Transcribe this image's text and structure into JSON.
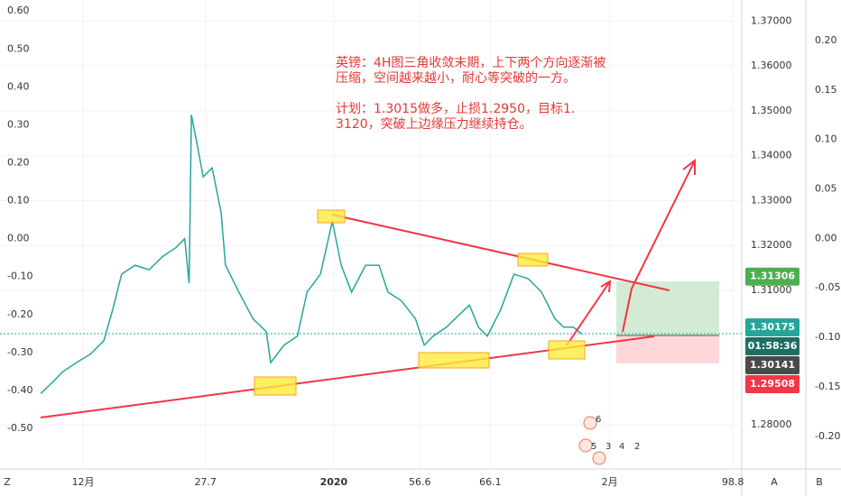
{
  "chart_data": {
    "type": "line",
    "x": [
      5.5,
      7.3,
      8.5,
      10.3,
      12.2,
      14.0,
      15.2,
      16.4,
      18.2,
      20.1,
      21.9,
      23.7,
      24.9,
      25.5,
      25.8,
      26.5,
      27.4,
      28.6,
      29.8,
      30.4,
      32.2,
      34.1,
      35.9,
      36.5,
      38.3,
      40.1,
      41.4,
      43.2,
      44.8,
      46.0,
      47.4,
      49.3,
      51.1,
      52.3,
      54.1,
      56.0,
      57.2,
      58.4,
      60.2,
      62.0,
      63.3,
      64.5,
      65.7,
      67.5,
      69.3,
      71.2,
      73.0,
      74.8,
      76.0,
      77.3,
      78.5
    ],
    "values": [
      1.287,
      1.2899,
      1.2919,
      1.2939,
      1.2958,
      1.2988,
      1.3057,
      1.3136,
      1.3156,
      1.3146,
      1.3175,
      1.3195,
      1.3215,
      1.3116,
      1.3491,
      1.3432,
      1.3353,
      1.3373,
      1.3274,
      1.3156,
      1.3096,
      1.3037,
      1.3008,
      1.2939,
      1.2978,
      1.2998,
      1.3096,
      1.3136,
      1.3254,
      1.3156,
      1.3096,
      1.3156,
      1.3156,
      1.3096,
      1.3077,
      1.3037,
      1.2978,
      1.2998,
      1.3018,
      1.3047,
      1.3067,
      1.3018,
      1.2998,
      1.3057,
      1.3136,
      1.3126,
      1.3096,
      1.3037,
      1.3018,
      1.3018,
      1.3002
    ],
    "axis": "y2",
    "color": "#26a69a",
    "xlim": [
      0,
      100
    ],
    "xticks": [
      {
        "value": 11.2,
        "label": "12月"
      },
      27.7,
      {
        "value": 45,
        "label": "2020"
      },
      56.6,
      66.1,
      {
        "value": 82.2,
        "label": "2月"
      },
      98.8
    ],
    "ylim": [
      -0.607,
      0.629
    ],
    "yticks": [
      {
        "value": 0.6,
        "label": "0.60"
      },
      {
        "value": 0.5,
        "label": "0.50"
      },
      {
        "value": 0.4,
        "label": "0.40"
      },
      {
        "value": 0.3,
        "label": "0.30"
      },
      {
        "value": 0.2,
        "label": "0.20"
      },
      {
        "value": 0.1,
        "label": "0.10"
      },
      {
        "value": 0,
        "label": "0.00"
      },
      {
        "value": -0.1,
        "label": "-0.10"
      },
      {
        "value": -0.2,
        "label": "-0.20"
      },
      {
        "value": -0.3,
        "label": "-0.30"
      },
      {
        "value": -0.4,
        "label": "-0.40"
      },
      {
        "value": -0.5,
        "label": "-0.50"
      }
    ],
    "y2lim": [
      1.2702,
      1.3747
    ],
    "y2ticks": [
      {
        "value": 1.37,
        "label": "1.37000"
      },
      {
        "value": 1.36,
        "label": "1.36000"
      },
      {
        "value": 1.35,
        "label": "1.35000"
      },
      {
        "value": 1.34,
        "label": "1.34000"
      },
      {
        "value": 1.33,
        "label": "1.33000"
      },
      {
        "value": 1.32,
        "label": "1.32000"
      },
      {
        "value": 1.31,
        "label": "1.31000"
      },
      {
        "value": 1.28,
        "label": "1.28000"
      }
    ],
    "y3lim": [
      -0.233,
      0.241
    ],
    "y3ticks": [
      {
        "value": 0.2,
        "label": "0.20"
      },
      {
        "value": 0.15,
        "label": "0.15"
      },
      {
        "value": 0.1,
        "label": "0.10"
      },
      {
        "value": 0.05,
        "label": "0.05"
      },
      {
        "value": 0,
        "label": "0.00"
      },
      {
        "value": -0.05,
        "label": "-0.05"
      },
      {
        "value": -0.1,
        "label": "-0.10"
      },
      {
        "value": -0.15,
        "label": "-0.15"
      },
      {
        "value": -0.2,
        "label": "-0.20"
      }
    ],
    "grid": true,
    "badges": [
      {
        "value": 1.31306,
        "label": "1.31306",
        "color": "#4caf50"
      },
      {
        "value": 1.30175,
        "label": "1.30175",
        "color": "#26a69a"
      },
      {
        "label": "01:58:36",
        "color": "#1e6f63"
      },
      {
        "value": 1.30141,
        "label": "1.30141",
        "color": "#4a4a4a"
      },
      {
        "value": 1.29508,
        "label": "1.29508",
        "color": "#f23645"
      }
    ],
    "annotation": [
      [
        "英镑：4H图三角收敛末期，上下两个方向逐渐被",
        "压缩，空间越来越小，耐心等突破的一方。"
      ],
      [
        "计划：1.3015做多，止损1.2950，目标1.",
        "3120，突破上边缘压力继续持仓。"
      ]
    ],
    "events": [
      "6",
      "5",
      "3",
      "4",
      "2"
    ],
    "controls": [
      "Z",
      "A",
      "B"
    ]
  }
}
